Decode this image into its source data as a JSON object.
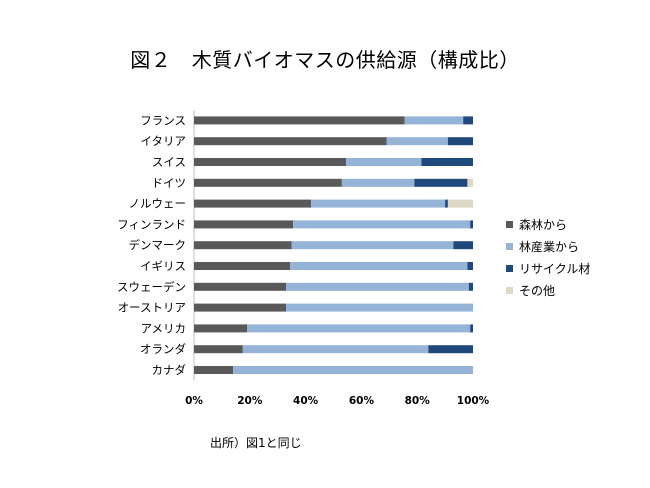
{
  "title": "図２　木質バイオマスの供給源（構成比）",
  "source": "出所）図1と同じ",
  "colors": {
    "forest": "#595959",
    "industry": "#95b3d7",
    "recycle": "#1f497d",
    "other": "#ddd9c4"
  },
  "chart_data": {
    "type": "bar",
    "orientation": "horizontal",
    "stacked": "percent",
    "title": "図２　木質バイオマスの供給源（構成比）",
    "xlim": [
      0,
      100
    ],
    "x_ticks": [
      "0%",
      "20%",
      "40%",
      "60%",
      "80%",
      "100%"
    ],
    "grid": false,
    "legend_position": "right",
    "categories": [
      "フランス",
      "イタリア",
      "スイス",
      "ドイツ",
      "ノルウェー",
      "フィンランド",
      "デンマーク",
      "イギリス",
      "スウェーデン",
      "オーストリア",
      "アメリカ",
      "オランダ",
      "カナダ"
    ],
    "series": [
      {
        "name": "森林から",
        "color_key": "forest",
        "values": [
          75.5,
          69,
          54.5,
          53,
          42,
          35.5,
          35,
          34.5,
          33,
          33,
          19,
          17.5,
          14
        ]
      },
      {
        "name": "林産業から",
        "color_key": "industry",
        "values": [
          21,
          22,
          27,
          26,
          48,
          63.5,
          58,
          63.5,
          65.5,
          67,
          80,
          66.5,
          86
        ]
      },
      {
        "name": "リサイクル材",
        "color_key": "recycle",
        "values": [
          3.5,
          9,
          18.5,
          19,
          1,
          1,
          7,
          2,
          1.5,
          0,
          1,
          16,
          0
        ]
      },
      {
        "name": "その他",
        "color_key": "other",
        "values": [
          0,
          0,
          0,
          2,
          9,
          0,
          0,
          0,
          0,
          0,
          0,
          0,
          0
        ]
      }
    ]
  }
}
